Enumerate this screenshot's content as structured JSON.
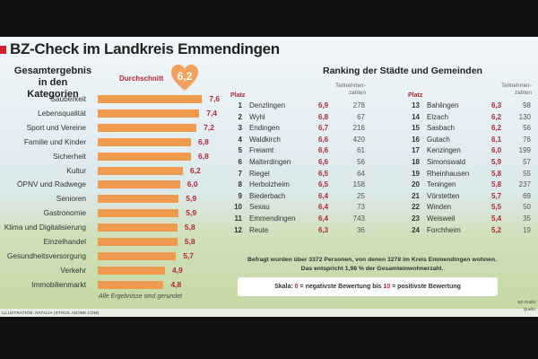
{
  "title": "BZ-Check im Landkreis Emmendingen",
  "left": {
    "heading_line1": "Gesamtergebnis",
    "heading_line2": "in den Kategorien",
    "average_label": "Durchschnitt",
    "average_value": "6,2",
    "note": "Alle Ergebnisse sind gerundet"
  },
  "chart_data": {
    "type": "bar",
    "orientation": "horizontal",
    "title": "Gesamtergebnis in den Kategorien",
    "categories": [
      "Sauberkeit",
      "Lebensqualität",
      "Sport und Vereine",
      "Familie und Kinder",
      "Sicherheit",
      "Kultur",
      "ÖPNV und Radwege",
      "Senioren",
      "Gastronomie",
      "Klima und Digitalisierung",
      "Einzelhandel",
      "Gesundheitsversorgung",
      "Verkehr",
      "Immobilienmarkt"
    ],
    "values": [
      7.6,
      7.4,
      7.2,
      6.8,
      6.8,
      6.2,
      6.0,
      5.9,
      5.9,
      5.8,
      5.8,
      5.7,
      4.9,
      4.8
    ],
    "labels": [
      "7,6",
      "7,4",
      "7,2",
      "6,8",
      "6,8",
      "6,2",
      "6,0",
      "5,9",
      "5,9",
      "5,8",
      "5,8",
      "5,7",
      "4,9",
      "4,8"
    ],
    "bar_color": "#ef9a4f",
    "label_color": "#b52838"
  },
  "ranking": {
    "title": "Ranking der Städte und Gemeinden",
    "platz_label": "Platz",
    "participants_line1": "Teilnehmer-",
    "participants_line2": "zahlen",
    "rows": [
      [
        "1",
        "Denzlingen",
        "6,9",
        "278"
      ],
      [
        "2",
        "Wyhl",
        "6,8",
        "67"
      ],
      [
        "3",
        "Endingen",
        "6,7",
        "216"
      ],
      [
        "4",
        "Waldkirch",
        "6,6",
        "420"
      ],
      [
        "5",
        "Freiamt",
        "6,6",
        "61"
      ],
      [
        "6",
        "Malterdingen",
        "6,6",
        "56"
      ],
      [
        "7",
        "Riegel",
        "6,5",
        "64"
      ],
      [
        "8",
        "Herbolzheim",
        "6,5",
        "158"
      ],
      [
        "9",
        "Biederbach",
        "6,4",
        "25"
      ],
      [
        "10",
        "Sexau",
        "6,4",
        "73"
      ],
      [
        "11",
        "Emmendingen",
        "6,4",
        "743"
      ],
      [
        "12",
        "Reute",
        "6,3",
        "36"
      ],
      [
        "13",
        "Bahlingen",
        "6,3",
        "98"
      ],
      [
        "14",
        "Elzach",
        "6,2",
        "130"
      ],
      [
        "15",
        "Sasbach",
        "6,2",
        "56"
      ],
      [
        "16",
        "Gutach",
        "6,1",
        "76"
      ],
      [
        "17",
        "Kenzingen",
        "6,0",
        "199"
      ],
      [
        "18",
        "Simonswald",
        "5,9",
        "57"
      ],
      [
        "19",
        "Rheinhausen",
        "5,8",
        "55"
      ],
      [
        "20",
        "Teningen",
        "5,8",
        "237"
      ],
      [
        "21",
        "Vörstetten",
        "5,7",
        "69"
      ],
      [
        "22",
        "Winden",
        "5,5",
        "50"
      ],
      [
        "23",
        "Weisweil",
        "5,4",
        "35"
      ],
      [
        "24",
        "Forchheim",
        "5,2",
        "19"
      ]
    ]
  },
  "footnote_line1": "Befragt wurden über 3372 Personen, von denen 3278 im Kreis Emmendingen wohnen.",
  "footnote_line2": "Das entspricht 1,98 % der Gesamteinwohnerzahl.",
  "scale": {
    "prefix": "Skala:",
    "low": "0",
    "low_text": "= negativste Bewertung bis",
    "high": "10",
    "high_text": "= positivste Bewertung"
  },
  "credit": "Illustration: Natalia (stock.adobe.com)",
  "source_line1": "BZ-Grafik/",
  "source_line2": "Quelle:"
}
